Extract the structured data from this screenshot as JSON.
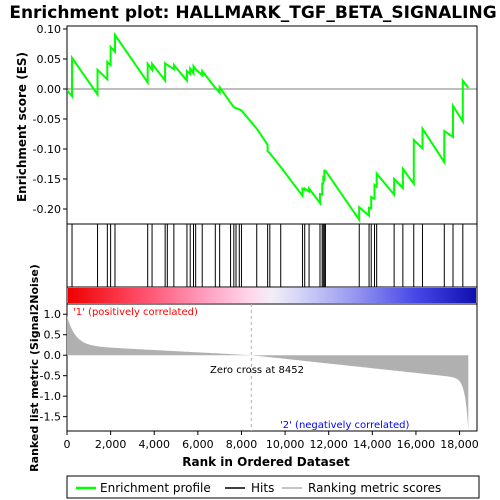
{
  "chart_data": {
    "type": "line",
    "title": "Enrichment plot: HALLMARK_TGF_BETA_SIGNALING",
    "xlabel": "Rank in Ordered Dataset",
    "ylabel_top": "Enrichment score (ES)",
    "ylabel_bottom": "Ranked list metric (Signal2Noise)",
    "xlim": [
      0,
      18800
    ],
    "x_ticks": [
      0,
      2000,
      4000,
      6000,
      8000,
      10000,
      12000,
      14000,
      16000,
      18000
    ],
    "x_tick_labels": [
      "0",
      "2,000",
      "4,000",
      "6,000",
      "8,000",
      "10,000",
      "12,000",
      "14,000",
      "16,000",
      "18,000"
    ],
    "es_ylim": [
      -0.225,
      0.105
    ],
    "es_ticks": [
      0.1,
      0.05,
      0.0,
      -0.05,
      -0.1,
      -0.15,
      -0.2
    ],
    "es_tick_labels": [
      "0.10",
      "0.05",
      "0.00",
      "-0.05",
      "-0.10",
      "-0.15",
      "-0.20"
    ],
    "metric_ylim": [
      -1.85,
      1.25
    ],
    "metric_ticks": [
      1.0,
      0.5,
      0.0,
      -0.5,
      -1.0,
      -1.5
    ],
    "metric_tick_labels": [
      "1.0",
      "0.5",
      "0.0",
      "-0.5",
      "-1.0",
      "-1.5"
    ],
    "grid": false,
    "legend_placement": "bottom",
    "colors": {
      "enrichment_line": "#00ff00",
      "hits": "#000000",
      "metric_fill": "#b0b0b0",
      "zero_line": "#b0b0b0",
      "positive_label": "#ff0000",
      "negative_label": "#0000ff"
    },
    "hits": [
      230,
      1400,
      1850,
      2000,
      2200,
      3700,
      3900,
      4500,
      4600,
      4900,
      5500,
      5650,
      5800,
      5900,
      6200,
      6800,
      7000,
      7500,
      7650,
      7750,
      7900,
      8000,
      8700,
      9200,
      9300,
      9800,
      10800,
      10900,
      11100,
      11600,
      11700,
      11750,
      11800,
      11850,
      13400,
      13850,
      13950,
      14100,
      14200,
      15000,
      15400,
      15900,
      16300,
      17300,
      17700,
      18150
    ],
    "es_curve": {
      "x": [
        0,
        230,
        230,
        1400,
        1400,
        1850,
        1850,
        2000,
        2000,
        2200,
        2200,
        3700,
        3700,
        3900,
        3900,
        4500,
        4500,
        4600,
        4600,
        4900,
        4900,
        5500,
        5500,
        5650,
        5650,
        5800,
        5800,
        5900,
        5900,
        6200,
        6200,
        6800,
        6800,
        7000,
        7000,
        7500,
        7500,
        7650,
        7650,
        7750,
        7750,
        7900,
        7900,
        8000,
        8000,
        8700,
        8700,
        9200,
        9200,
        9300,
        9300,
        9800,
        9800,
        10800,
        10800,
        10900,
        10900,
        11100,
        11100,
        11600,
        11600,
        11700,
        11700,
        11750,
        11750,
        11800,
        11800,
        11850,
        11850,
        13400,
        13400,
        13850,
        13850,
        13950,
        13950,
        14100,
        14100,
        14200,
        14200,
        15000,
        15000,
        15400,
        15400,
        15900,
        15900,
        16300,
        16300,
        17300,
        17300,
        17700,
        17700,
        18150,
        18150,
        18400
      ],
      "y": [
        -0.002,
        -0.012,
        0.052,
        -0.009,
        0.032,
        0.016,
        0.045,
        0.04,
        0.07,
        0.062,
        0.09,
        0.011,
        0.042,
        0.032,
        0.042,
        0.014,
        0.043,
        0.04,
        0.04,
        0.033,
        0.04,
        0.014,
        0.03,
        0.025,
        0.034,
        0.026,
        0.038,
        0.033,
        0.033,
        0.023,
        0.03,
        0.002,
        0.002,
        -0.006,
        0.003,
        -0.023,
        -0.023,
        -0.03,
        -0.03,
        -0.032,
        -0.032,
        -0.034,
        -0.034,
        -0.036,
        -0.036,
        -0.066,
        -0.066,
        -0.093,
        -0.104,
        -0.107,
        -0.107,
        -0.13,
        -0.13,
        -0.178,
        -0.166,
        -0.168,
        -0.166,
        -0.171,
        -0.166,
        -0.19,
        -0.175,
        -0.176,
        -0.158,
        -0.158,
        -0.148,
        -0.15,
        -0.136,
        -0.136,
        -0.136,
        -0.218,
        -0.197,
        -0.211,
        -0.198,
        -0.199,
        -0.18,
        -0.183,
        -0.16,
        -0.163,
        -0.141,
        -0.176,
        -0.15,
        -0.165,
        -0.133,
        -0.158,
        -0.085,
        -0.099,
        -0.066,
        -0.122,
        -0.07,
        -0.08,
        -0.028,
        -0.054,
        0.014,
        0.002
      ]
    },
    "zero_cross": 8452,
    "annotations": {
      "positive": "'1' (positively correlated)",
      "negative": "'2' (negatively correlated)",
      "zero_cross": "Zero cross at 8452"
    },
    "legend": [
      {
        "label": "Enrichment profile",
        "color": "#00ff00"
      },
      {
        "label": "Hits",
        "color": "#000000"
      },
      {
        "label": "Ranking metric scores",
        "color": "#b0b0b0"
      }
    ]
  }
}
